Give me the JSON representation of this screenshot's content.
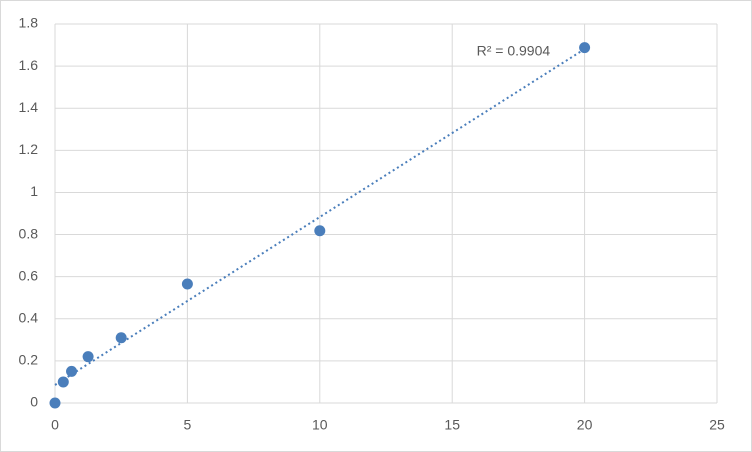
{
  "chart_data": {
    "type": "scatter",
    "x": [
      0,
      0.313,
      0.625,
      1.25,
      2.5,
      5,
      10,
      20
    ],
    "series": [
      {
        "color": "#4a7ebb",
        "values": [
          0,
          0.1,
          0.15,
          0.22,
          0.31,
          0.565,
          0.818,
          1.688
        ]
      }
    ],
    "trendline": {
      "kind": "linear",
      "style": "dotted",
      "color": "#4a7ebb",
      "label": "R² = 0.9904"
    },
    "xlim": [
      0,
      25
    ],
    "xticks": [
      0,
      5,
      10,
      15,
      20,
      25
    ],
    "ylim": [
      0,
      1.8
    ],
    "yticks": [
      0,
      0.2,
      0.4,
      0.6,
      0.8,
      1,
      1.2,
      1.4,
      1.6,
      1.8
    ],
    "grid": true
  }
}
